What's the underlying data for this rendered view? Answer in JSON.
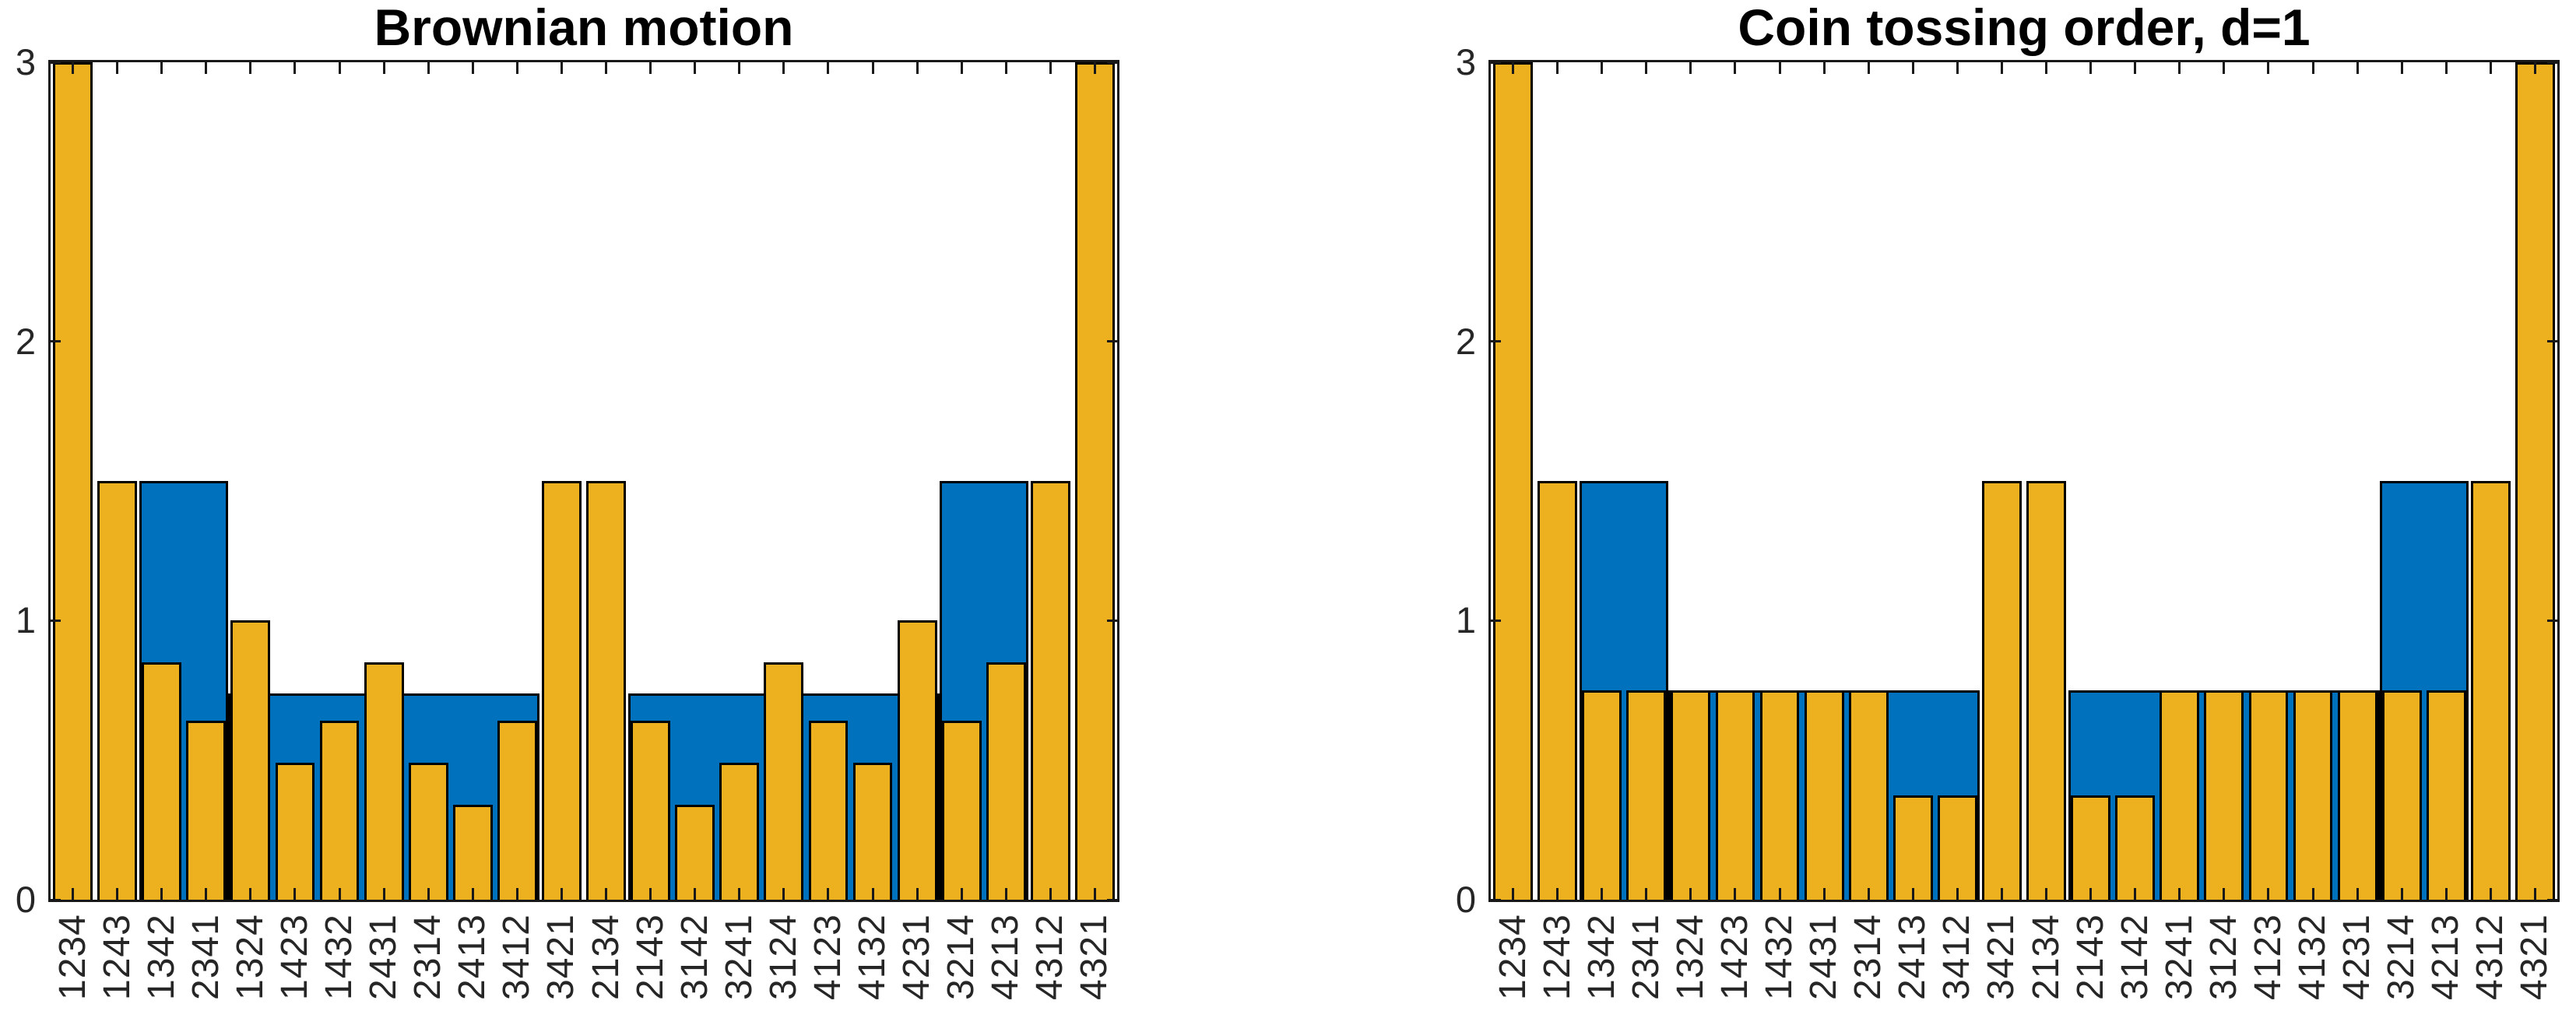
{
  "figure": {
    "background_color": "#ffffff",
    "axis_color": "#191919",
    "tick_label_color": "#262626"
  },
  "chart_data": [
    {
      "type": "bar",
      "title": "Brownian motion",
      "categories": [
        "1234",
        "1243",
        "1342",
        "2341",
        "1324",
        "1423",
        "1432",
        "2431",
        "2314",
        "2413",
        "3412",
        "3421",
        "2134",
        "2143",
        "3142",
        "3241",
        "3124",
        "4123",
        "4132",
        "4231",
        "3214",
        "4213",
        "4312",
        "4321"
      ],
      "series": [
        {
          "name": "blue-background-series",
          "color": "#0072BD",
          "values": [
            0,
            0,
            1.5,
            1.5,
            0.74,
            0.74,
            0.74,
            0.74,
            0.74,
            0.74,
            0.74,
            0,
            0,
            0.74,
            0.74,
            0.74,
            0.74,
            0.74,
            0.74,
            0.74,
            1.5,
            1.5,
            0,
            0
          ]
        },
        {
          "name": "yellow-foreground-series",
          "color": "#EDB120",
          "values": [
            3,
            1.5,
            0.85,
            0.64,
            1,
            0.49,
            0.64,
            0.85,
            0.49,
            0.34,
            0.64,
            1.5,
            1.5,
            0.64,
            0.34,
            0.49,
            0.85,
            0.64,
            0.49,
            1,
            0.64,
            0.85,
            1.5,
            3
          ]
        }
      ],
      "ylim": [
        0,
        3
      ],
      "yticks": [
        0,
        1,
        2,
        3
      ],
      "grid": false,
      "legend": "none",
      "xlabel": "",
      "ylabel": "",
      "note": "bars for 1234 and 4321 are clipped at the top of the axis (y=3); x tick labels rotated 90 degrees"
    },
    {
      "type": "bar",
      "title": "Coin tossing order, d=1",
      "categories": [
        "1234",
        "1243",
        "1342",
        "2341",
        "1324",
        "1423",
        "1432",
        "2431",
        "2314",
        "2413",
        "3412",
        "3421",
        "2134",
        "2143",
        "3142",
        "3241",
        "3124",
        "4123",
        "4132",
        "4231",
        "3214",
        "4213",
        "4312",
        "4321"
      ],
      "series": [
        {
          "name": "blue-background-series",
          "color": "#0072BD",
          "values": [
            0,
            0,
            1.5,
            1.5,
            0.75,
            0.75,
            0.75,
            0.75,
            0.75,
            0.75,
            0.75,
            0,
            0,
            0.75,
            0.75,
            0.75,
            0.75,
            0.75,
            0.75,
            0.75,
            1.5,
            1.5,
            0,
            0
          ]
        },
        {
          "name": "yellow-foreground-series",
          "color": "#EDB120",
          "values": [
            3,
            1.5,
            0.75,
            0.75,
            0.75,
            0.75,
            0.75,
            0.75,
            0.75,
            0.375,
            0.375,
            1.5,
            1.5,
            0.375,
            0.375,
            0.75,
            0.75,
            0.75,
            0.75,
            0.75,
            0.75,
            0.75,
            1.5,
            3
          ]
        }
      ],
      "ylim": [
        0,
        3
      ],
      "yticks": [
        0,
        1,
        2,
        3
      ],
      "grid": false,
      "legend": "none",
      "xlabel": "",
      "ylabel": "",
      "note": "bars for 1234 and 4321 are clipped at the top of the axis (y=3); x tick labels rotated 90 degrees"
    }
  ]
}
